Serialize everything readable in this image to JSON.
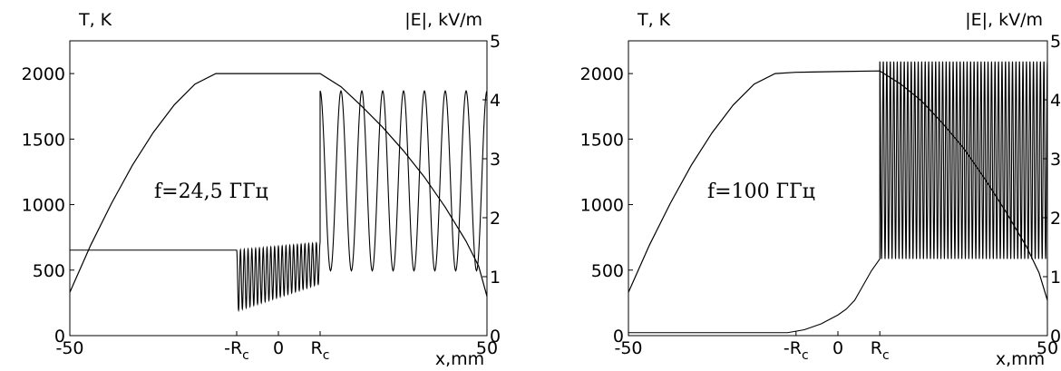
{
  "chart_data": [
    {
      "type": "line",
      "y_left_label": "T, K",
      "y_right_label": "|E|, kV/m",
      "xlabel": "x,mm",
      "xlim": [
        -50,
        50
      ],
      "ylim_left": [
        0,
        2250
      ],
      "ylim_right": [
        0,
        5
      ],
      "x_ticks": [
        "-50",
        "-R",
        "0",
        "R",
        "50"
      ],
      "x_tick_sub": "c",
      "y_left_ticks": [
        "0",
        "500",
        "1000",
        "1500",
        "2000"
      ],
      "y_right_ticks": [
        "0",
        "1",
        "2",
        "3",
        "4",
        "5"
      ],
      "rc": 10,
      "annotation": "f=24,5 ГГц",
      "series": [
        {
          "axis": "left",
          "x": [
            -50,
            -45,
            -40,
            -35,
            -30,
            -25,
            -20,
            -15,
            -10,
            0,
            10,
            15,
            20,
            25,
            30,
            35,
            40,
            45,
            48,
            50
          ],
          "y": [
            330,
            690,
            1010,
            1300,
            1550,
            1760,
            1920,
            2000,
            2000,
            2000,
            2000,
            1900,
            1750,
            1590,
            1410,
            1210,
            980,
            720,
            530,
            300
          ]
        },
        {
          "axis": "right",
          "segments": [
            {
              "type": "flat",
              "x": [
                -50,
                -10
              ],
              "value": 1.45
            },
            {
              "type": "oscillation",
              "x": [
                -10,
                10
              ],
              "upper": [
                1.45,
                1.58
              ],
              "lower": [
                0.42,
                0.88
              ],
              "cycles": 22
            },
            {
              "type": "oscillation",
              "x": [
                10,
                50
              ],
              "upper": [
                4.15,
                4.15
              ],
              "lower": [
                1.1,
                1.1
              ],
              "cycles": 8
            }
          ]
        }
      ]
    },
    {
      "type": "line",
      "y_left_label": "T, K",
      "y_right_label": "|E|, kV/m",
      "xlabel": "x,mm",
      "xlim": [
        -50,
        50
      ],
      "ylim_left": [
        0,
        2250
      ],
      "ylim_right": [
        0,
        5
      ],
      "x_ticks": [
        "-50",
        "-R",
        "0",
        "R",
        "50"
      ],
      "x_tick_sub": "c",
      "y_left_ticks": [
        "0",
        "500",
        "1000",
        "1500",
        "2000"
      ],
      "y_right_ticks": [
        "0",
        "1",
        "2",
        "3",
        "4",
        "5"
      ],
      "rc": 10,
      "annotation": "f=100 ГГц",
      "series": [
        {
          "axis": "left",
          "x": [
            -50,
            -45,
            -40,
            -35,
            -30,
            -25,
            -20,
            -15,
            -10,
            0,
            10,
            15,
            20,
            25,
            30,
            35,
            40,
            45,
            48,
            50
          ],
          "y": [
            330,
            690,
            1010,
            1300,
            1550,
            1760,
            1920,
            2000,
            2010,
            2015,
            2020,
            1920,
            1790,
            1620,
            1430,
            1200,
            950,
            680,
            480,
            270
          ]
        },
        {
          "axis": "right",
          "segments": [
            {
              "type": "flat",
              "x": [
                -50,
                -12
              ],
              "value": 0.05
            },
            {
              "type": "curve",
              "x": [
                -12,
                -8,
                -4,
                0,
                2,
                4,
                6,
                8,
                10
              ],
              "y": [
                0.05,
                0.1,
                0.2,
                0.35,
                0.45,
                0.6,
                0.85,
                1.1,
                1.3
              ]
            },
            {
              "type": "oscillation",
              "x": [
                10,
                50
              ],
              "upper": [
                4.65,
                4.65
              ],
              "lower": [
                1.3,
                1.3
              ],
              "cycles": 48
            }
          ]
        }
      ]
    }
  ]
}
